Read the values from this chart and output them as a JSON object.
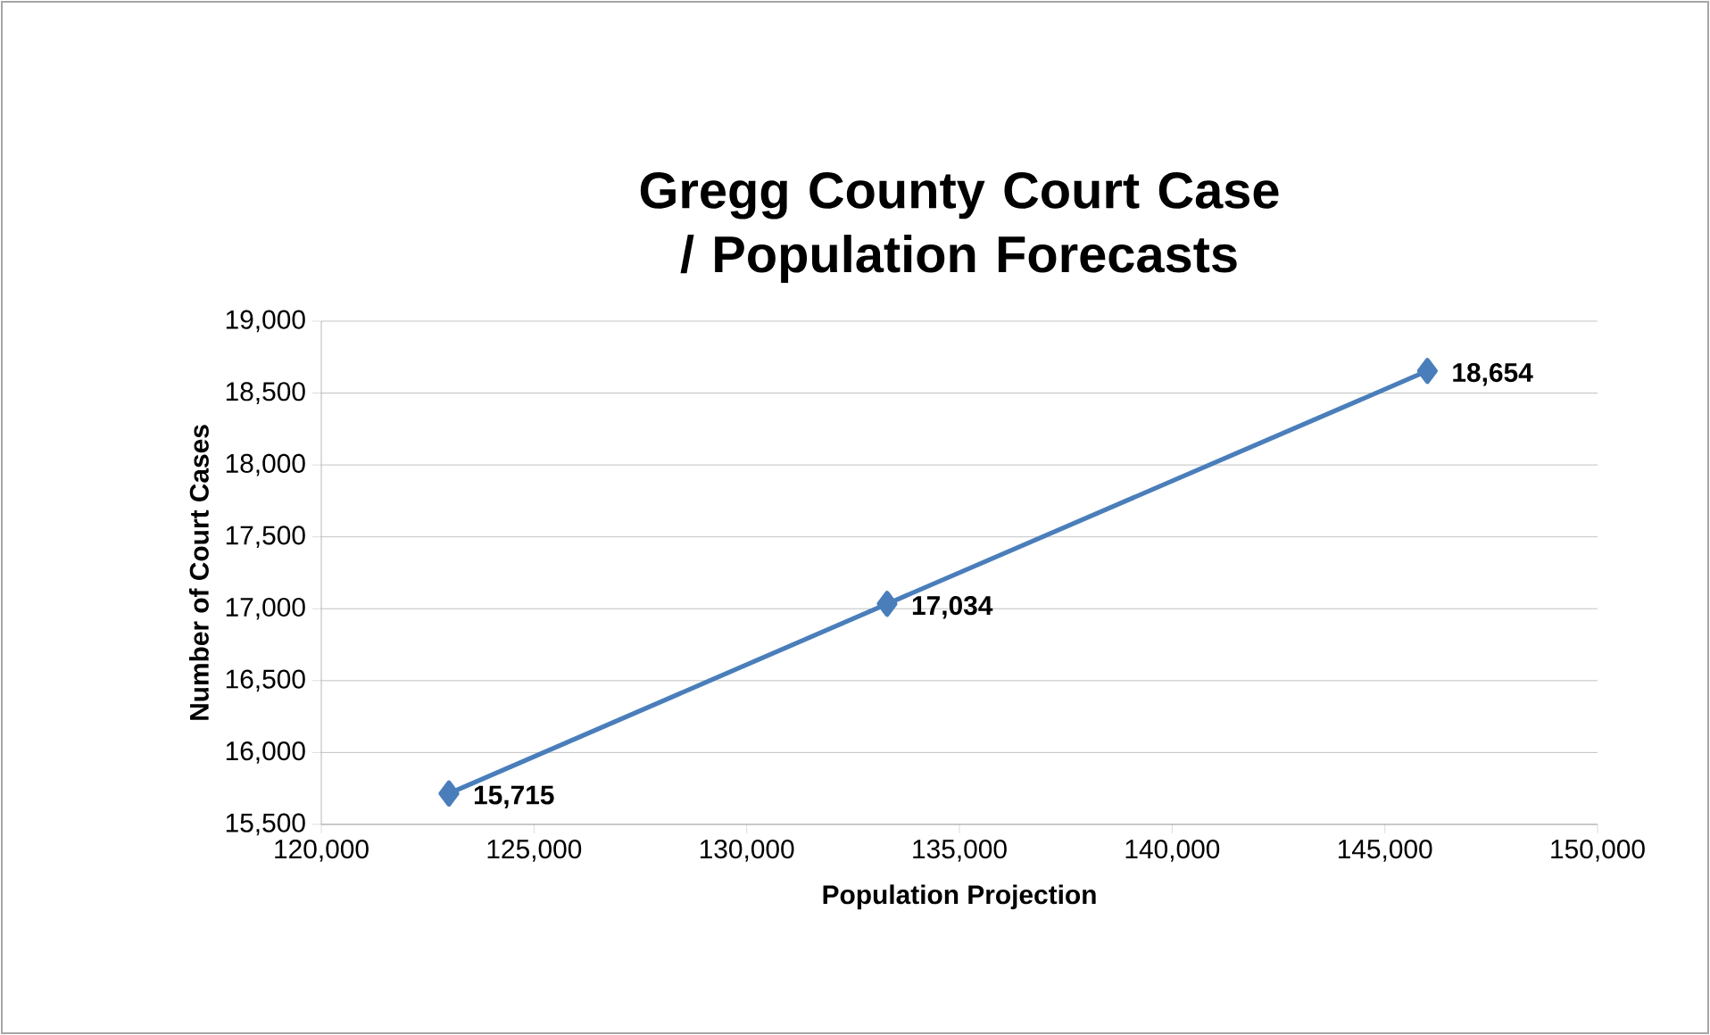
{
  "chart_data": {
    "type": "line",
    "title": "Gregg County Court Case / Population Forecasts",
    "xlabel": "Population Projection",
    "ylabel": "Number of Court Cases",
    "x": [
      123000,
      133300,
      146000
    ],
    "series": [
      {
        "color": "#4a7ebb",
        "values": [
          15715,
          17034,
          18654
        ],
        "value_labels": [
          "15,715",
          "17,034",
          "18,654"
        ]
      }
    ],
    "xlim": [
      120000,
      150000
    ],
    "xticks": [
      {
        "value": 120000,
        "label": "120,000"
      },
      {
        "value": 125000,
        "label": "125,000"
      },
      {
        "value": 130000,
        "label": "130,000"
      },
      {
        "value": 135000,
        "label": "135,000"
      },
      {
        "value": 140000,
        "label": "140,000"
      },
      {
        "value": 145000,
        "label": "145,000"
      },
      {
        "value": 150000,
        "label": "150,000"
      }
    ],
    "ylim": [
      15500,
      19000
    ],
    "yticks": [
      {
        "value": 15500,
        "label": "15,500"
      },
      {
        "value": 16000,
        "label": "16,000"
      },
      {
        "value": 16500,
        "label": "16,500"
      },
      {
        "value": 17000,
        "label": "17,000"
      },
      {
        "value": 17500,
        "label": "17,500"
      },
      {
        "value": 18000,
        "label": "18,000"
      },
      {
        "value": 18500,
        "label": "18,500"
      },
      {
        "value": 19000,
        "label": "19,000"
      }
    ],
    "grid": "y",
    "marker": "diamond",
    "line_style": "solid"
  }
}
